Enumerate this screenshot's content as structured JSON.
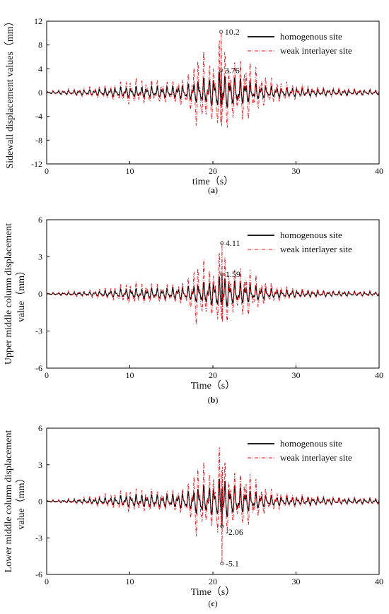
{
  "colors": {
    "homogenous": "#000000",
    "weak": "#e8141b",
    "axis": "#000000"
  },
  "charts": [
    {
      "id": "a",
      "caption_letter": "a",
      "xlabel": "time（s）",
      "ylabel": "Sidewall displacement values（mm）",
      "xlim": [
        0,
        40
      ],
      "ylim": [
        -12,
        12
      ],
      "xticks": [
        0,
        10,
        20,
        30,
        40
      ],
      "yticks": [
        -12,
        -8,
        -4,
        0,
        4,
        8,
        12
      ],
      "annotations": [
        {
          "x": 21.0,
          "y": 10.2,
          "label": "10.2",
          "series": "weak"
        },
        {
          "x": 21.0,
          "y": 3.76,
          "label": "3.76",
          "series": "homogenous"
        }
      ]
    },
    {
      "id": "b",
      "caption_letter": "b",
      "xlabel": "Time（s）",
      "ylabel_lines": [
        "Upper middle column displacement",
        "value（mm）"
      ],
      "xlim": [
        0,
        40
      ],
      "ylim": [
        -6,
        6
      ],
      "xticks": [
        0,
        10,
        20,
        30,
        40
      ],
      "yticks": [
        -6,
        -3,
        0,
        3,
        6
      ],
      "annotations": [
        {
          "x": 21.1,
          "y": 4.11,
          "label": "4.11",
          "series": "weak"
        },
        {
          "x": 21.1,
          "y": 1.59,
          "label": "1.59",
          "series": "homogenous"
        }
      ]
    },
    {
      "id": "c",
      "caption_letter": "c",
      "xlabel": "Time（s）",
      "ylabel_lines": [
        "Lower middle column displacement",
        "value（mm）"
      ],
      "xlim": [
        0,
        40
      ],
      "ylim": [
        -6,
        6
      ],
      "xticks": [
        0,
        10,
        20,
        30,
        40
      ],
      "yticks": [
        -6,
        -3,
        0,
        3,
        6
      ],
      "annotations": [
        {
          "x": 21.1,
          "y": -2.06,
          "label": "-2.06",
          "series": "homogenous"
        },
        {
          "x": 21.1,
          "y": -5.1,
          "label": "-5.1",
          "series": "weak"
        }
      ]
    }
  ],
  "legend": {
    "homogenous": "homogenous site",
    "weak": "weak interlayer site"
  },
  "chart_data": [
    {
      "type": "line",
      "panel": "a",
      "xlabel": "time（s）",
      "ylabel": "Sidewall displacement values（mm）",
      "xlim": [
        0,
        40
      ],
      "ylim": [
        -12,
        12
      ],
      "legend_position": "top-right",
      "series": [
        {
          "name": "homogenous site",
          "envelope_x": [
            0,
            2,
            5,
            8,
            10,
            12,
            15,
            17,
            18,
            19,
            20,
            21,
            22,
            23,
            24,
            25,
            26,
            28,
            30,
            33,
            36,
            40
          ],
          "envelope_y": [
            0.2,
            0.4,
            0.5,
            0.8,
            1.0,
            1.0,
            1.1,
            1.4,
            2.0,
            2.5,
            2.8,
            3.76,
            3.0,
            2.6,
            2.2,
            1.6,
            1.2,
            0.9,
            0.8,
            0.6,
            0.5,
            0.4
          ]
        },
        {
          "name": "weak interlayer site",
          "envelope_x": [
            0,
            2,
            5,
            8,
            10,
            12,
            15,
            17,
            18,
            19,
            20,
            21,
            22,
            23,
            24,
            25,
            26,
            28,
            30,
            33,
            36,
            40
          ],
          "envelope_y": [
            0.3,
            0.6,
            0.9,
            1.5,
            2.4,
            2.2,
            2.0,
            3.0,
            7.0,
            6.8,
            5.5,
            10.2,
            6.0,
            5.5,
            6.5,
            4.5,
            3.0,
            2.0,
            1.4,
            1.0,
            0.8,
            0.6
          ]
        }
      ]
    },
    {
      "type": "line",
      "panel": "b",
      "xlabel": "Time（s）",
      "ylabel": "Upper middle column displacement value（mm）",
      "xlim": [
        0,
        40
      ],
      "ylim": [
        -6,
        6
      ],
      "legend_position": "top-right",
      "series": [
        {
          "name": "homogenous site",
          "envelope_x": [
            0,
            2,
            5,
            8,
            10,
            12,
            15,
            17,
            18,
            19,
            20,
            21,
            22,
            23,
            24,
            25,
            26,
            28,
            30,
            33,
            36,
            40
          ],
          "envelope_y": [
            0.05,
            0.1,
            0.15,
            0.3,
            0.45,
            0.45,
            0.5,
            0.6,
            0.8,
            1.0,
            1.1,
            1.59,
            1.2,
            1.0,
            0.9,
            0.7,
            0.5,
            0.35,
            0.3,
            0.25,
            0.2,
            0.15
          ]
        },
        {
          "name": "weak interlayer site",
          "envelope_x": [
            0,
            2,
            5,
            8,
            10,
            12,
            15,
            17,
            18,
            19,
            20,
            21,
            22,
            23,
            24,
            25,
            26,
            28,
            30,
            33,
            36,
            40
          ],
          "envelope_y": [
            0.1,
            0.2,
            0.35,
            0.6,
            1.0,
            0.9,
            0.8,
            1.2,
            3.0,
            2.6,
            2.0,
            4.11,
            2.3,
            2.0,
            2.4,
            1.7,
            1.1,
            0.7,
            0.5,
            0.35,
            0.3,
            0.25
          ]
        }
      ]
    },
    {
      "type": "line",
      "panel": "c",
      "xlabel": "Time（s）",
      "ylabel": "Lower middle column displacement value（mm）",
      "xlim": [
        0,
        40
      ],
      "ylim": [
        -6,
        6
      ],
      "legend_position": "top-right",
      "series": [
        {
          "name": "homogenous site",
          "envelope_x": [
            0,
            2,
            5,
            8,
            10,
            12,
            15,
            17,
            18,
            19,
            20,
            21,
            22,
            23,
            24,
            25,
            26,
            28,
            30,
            33,
            36,
            40
          ],
          "envelope_y": [
            0.05,
            0.1,
            0.2,
            0.35,
            0.55,
            0.55,
            0.6,
            0.8,
            1.2,
            1.3,
            1.4,
            2.06,
            1.5,
            1.3,
            1.1,
            0.8,
            0.6,
            0.4,
            0.35,
            0.3,
            0.25,
            0.2
          ]
        },
        {
          "name": "weak interlayer site",
          "envelope_x": [
            0,
            2,
            5,
            8,
            10,
            12,
            15,
            17,
            18,
            19,
            20,
            21,
            22,
            23,
            24,
            25,
            26,
            28,
            30,
            33,
            36,
            40
          ],
          "envelope_y": [
            0.1,
            0.2,
            0.4,
            0.7,
            1.1,
            1.0,
            0.9,
            1.4,
            3.4,
            3.0,
            2.4,
            5.1,
            2.6,
            2.3,
            2.8,
            2.0,
            1.3,
            0.8,
            0.6,
            0.45,
            0.35,
            0.3
          ]
        }
      ]
    }
  ]
}
